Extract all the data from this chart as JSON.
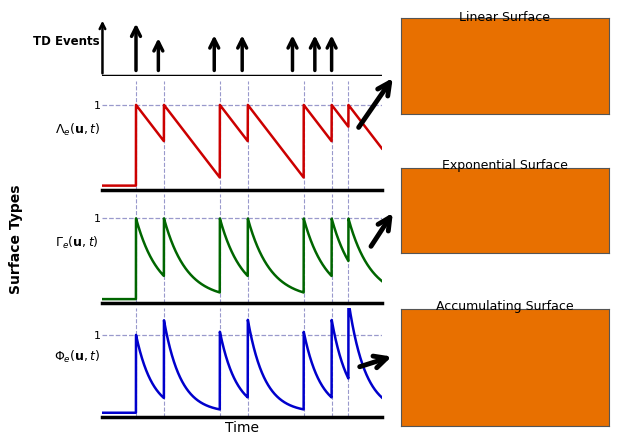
{
  "bg_color": "#ffffff",
  "event_times": [
    0.12,
    0.22,
    0.42,
    0.52,
    0.72,
    0.82,
    0.88
  ],
  "linear_color": "#cc0000",
  "exp_color": "#006600",
  "accum_color": "#0000cc",
  "dashed_color": "#9999cc",
  "label_linear": "$\\Lambda_e(\\mathbf{u},t)$",
  "label_exp": "$\\Gamma_e(\\mathbf{u},t)$",
  "label_accum": "$\\Phi_e(\\mathbf{u},t)$",
  "label_td": "TD Events",
  "tau_exp": 0.08,
  "tau_acc": 0.06,
  "lin_decay": 4.5,
  "xlim": [
    0,
    1.0
  ],
  "panel_labels": [
    "Linear Surface",
    "Exponential Surface",
    "Accumulating Surface"
  ],
  "img_color": "#e87000",
  "arrow_color": "#000000",
  "ylabel": "Surface Types",
  "xlabel": "Time"
}
